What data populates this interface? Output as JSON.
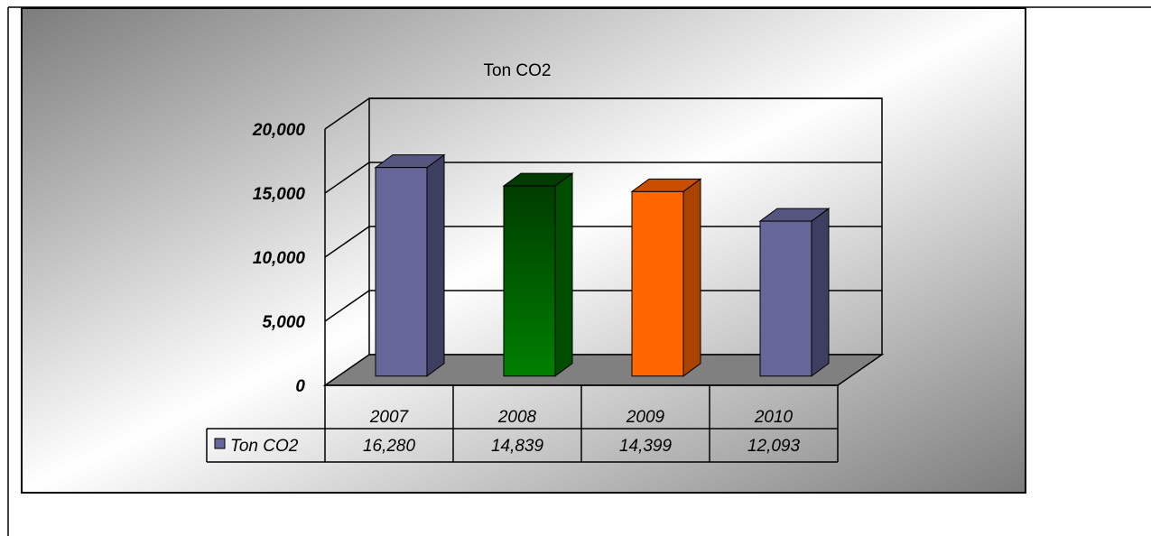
{
  "chart_data": {
    "type": "bar",
    "style": "3d-column",
    "title": "Ton CO2",
    "categories": [
      "2007",
      "2008",
      "2009",
      "2010"
    ],
    "series": [
      {
        "name": "Ton CO2",
        "values": [
          16280,
          14839,
          14399,
          12093
        ]
      }
    ],
    "data_table": {
      "series_label": "Ton CO2",
      "values_text": [
        "16,280",
        "14,839",
        "14,399",
        "12,093"
      ]
    },
    "y_ticks": [
      "0",
      "5,000",
      "10,000",
      "15,000",
      "20,000"
    ],
    "ylim": [
      0,
      20000
    ],
    "grid": true,
    "legend": "data-table",
    "colors": {
      "bars": [
        "#666699",
        "#008000",
        "#ff6600",
        "#666699"
      ],
      "bars_side": [
        "#3e3e60",
        "#004d00",
        "#a84300",
        "#3e3e60"
      ],
      "bars_top": [
        "#55557f",
        "#003c00",
        "#c94f00",
        "#55557f"
      ],
      "floor": "#808080",
      "legend_key": "#666699"
    }
  }
}
